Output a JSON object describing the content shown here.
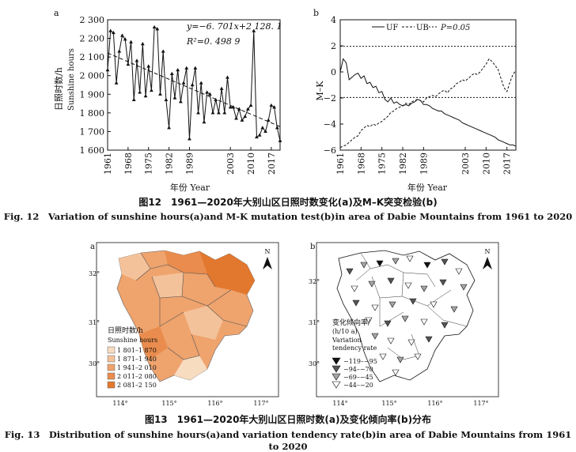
{
  "fig12": {
    "caption_cn": "图12　1961—2020年大别山区日照时数变化(a)及M–K突变检验(b)",
    "caption_en": "Fig. 12　Variation of sunshine hours(a)and M-K mutation test(b)in area of Dabie Mountains from 1961 to 2020"
  },
  "fig13": {
    "caption_cn": "图13　1961—2020年大别山区日照时数(a)及变化倾向率(b)分布",
    "caption_en": "Fig. 13　Distribution of sunshine hours(a)and variation tendency rate(b)in area of Dabie Mountains from 1961 to 2020"
  },
  "chart_data": [
    {
      "type": "line",
      "panel": "a",
      "ylabel_cn": "日照时数/h",
      "ylabel_en": "Sunshine hours",
      "xlabel": "年份 Year",
      "equation": "y=−6. 701x+2 128. 1",
      "r2": "R²=0. 498 9",
      "ylim": [
        1600,
        2300
      ],
      "yticks": [
        "1 600",
        "1 700",
        "1 800",
        "1 900",
        "2 000",
        "2 100",
        "2 200",
        "2 300"
      ],
      "yticks_values": [
        1600,
        1700,
        1800,
        1900,
        2000,
        2100,
        2200,
        2300
      ],
      "xticks": [
        "1961",
        "1968",
        "1975",
        "1982",
        "1989",
        "2003",
        "2010",
        "2017"
      ],
      "x": [
        1961,
        1962,
        1963,
        1964,
        1965,
        1966,
        1967,
        1968,
        1969,
        1970,
        1971,
        1972,
        1973,
        1974,
        1975,
        1976,
        1977,
        1978,
        1979,
        1980,
        1981,
        1982,
        1983,
        1984,
        1985,
        1986,
        1987,
        1988,
        1989,
        1990,
        1991,
        1992,
        1993,
        1994,
        1995,
        1996,
        1997,
        1998,
        1999,
        2000,
        2001,
        2002,
        2003,
        2004,
        2005,
        2006,
        2007,
        2008,
        2009,
        2010,
        2011,
        2012,
        2013,
        2014,
        2015,
        2016,
        2017,
        2018,
        2019,
        2020
      ],
      "values": [
        2030,
        2240,
        2230,
        1960,
        2130,
        2215,
        2195,
        2060,
        2180,
        1870,
        2080,
        1910,
        2170,
        1890,
        2050,
        1920,
        2260,
        2250,
        1900,
        2130,
        1870,
        1720,
        2010,
        1880,
        2030,
        1860,
        1960,
        2040,
        1660,
        1950,
        2040,
        1800,
        1960,
        1750,
        1910,
        1900,
        1800,
        1870,
        1800,
        1930,
        1800,
        1990,
        1830,
        1830,
        1770,
        1820,
        1760,
        1780,
        1820,
        1840,
        2240,
        1670,
        1680,
        1720,
        1700,
        1760,
        1840,
        1830,
        1720,
        1650
      ],
      "trend_x": [
        1961,
        2020
      ],
      "trend_y": [
        2121.4,
        1726.1
      ]
    },
    {
      "type": "line",
      "panel": "b",
      "ylabel": "M–K",
      "xlabel": "年份 Year",
      "ylim": [
        -6,
        4
      ],
      "yticks": [
        "−6",
        "−4",
        "−2",
        "0",
        "2",
        "4"
      ],
      "yticks_values": [
        -6,
        -4,
        -2,
        0,
        2,
        4
      ],
      "xticks": [
        "1961",
        "1968",
        "1975",
        "1982",
        "1989",
        "2003",
        "2010",
        "2017"
      ],
      "legend": [
        "UF",
        "UB",
        "P=0.05"
      ],
      "legend_position": "top",
      "threshold": 1.96,
      "series": [
        {
          "name": "UF",
          "style": "solid",
          "x": [
            1961,
            1962,
            1963,
            1964,
            1965,
            1966,
            1967,
            1968,
            1969,
            1970,
            1971,
            1972,
            1973,
            1974,
            1975,
            1976,
            1977,
            1978,
            1979,
            1980,
            1981,
            1982,
            1983,
            1984,
            1985,
            1986,
            1987,
            1988,
            1989,
            1990,
            1991,
            1992,
            1993,
            1994,
            1995,
            1996,
            1997,
            1998,
            1999,
            2000,
            2001,
            2002,
            2003,
            2004,
            2005,
            2006,
            2007,
            2008,
            2009,
            2010,
            2011,
            2012,
            2013,
            2014,
            2015,
            2016,
            2017,
            2018,
            2019,
            2020
          ],
          "values": [
            0,
            1,
            0.7,
            -0.6,
            -0.4,
            -0.2,
            -0.1,
            -0.5,
            -0.3,
            -0.9,
            -0.8,
            -1.2,
            -1.1,
            -1.6,
            -1.5,
            -2.1,
            -2.3,
            -2.0,
            -2.4,
            -2.3,
            -2.5,
            -2.6,
            -2.5,
            -2.6,
            -2.4,
            -2.3,
            -2.1,
            -2.2,
            -2.5,
            -2.5,
            -2.6,
            -2.8,
            -2.9,
            -3.0,
            -3.0,
            -3.2,
            -3.3,
            -3.4,
            -3.5,
            -3.6,
            -3.7,
            -3.9,
            -4.0,
            -4.1,
            -4.2,
            -4.3,
            -4.4,
            -4.5,
            -4.6,
            -4.7,
            -4.8,
            -4.9,
            -5.0,
            -5.2,
            -5.3,
            -5.4,
            -5.5,
            -5.6,
            -5.6,
            -5.7
          ]
        },
        {
          "name": "UB",
          "style": "dashed",
          "x": [
            1961,
            1962,
            1963,
            1964,
            1965,
            1966,
            1967,
            1968,
            1969,
            1970,
            1971,
            1972,
            1973,
            1974,
            1975,
            1976,
            1977,
            1978,
            1979,
            1980,
            1981,
            1982,
            1983,
            1984,
            1985,
            1986,
            1987,
            1988,
            1989,
            1990,
            1991,
            1992,
            1993,
            1994,
            1995,
            1996,
            1997,
            1998,
            1999,
            2000,
            2001,
            2002,
            2003,
            2004,
            2005,
            2006,
            2007,
            2008,
            2009,
            2010,
            2011,
            2012,
            2013,
            2014,
            2015,
            2016,
            2017,
            2018,
            2019,
            2020
          ],
          "values": [
            -5.8,
            -5.7,
            -5.6,
            -5.4,
            -5.2,
            -5.0,
            -4.9,
            -4.5,
            -4.3,
            -4.1,
            -4.2,
            -4.0,
            -4.1,
            -3.9,
            -3.8,
            -3.6,
            -3.4,
            -3.1,
            -3.0,
            -2.8,
            -2.7,
            -2.6,
            -2.4,
            -2.5,
            -2.3,
            -2.2,
            -2.1,
            -2.2,
            -2.3,
            -2.0,
            -1.9,
            -1.8,
            -1.9,
            -1.7,
            -1.5,
            -1.4,
            -1.6,
            -1.3,
            -1.2,
            -0.9,
            -0.8,
            -0.6,
            -0.7,
            -0.5,
            -0.3,
            -0.1,
            -0.2,
            0,
            0.3,
            0.6,
            1.0,
            0.8,
            0.5,
            0.2,
            -0.5,
            -1.2,
            -1.5,
            -0.8,
            -0.2,
            0.1
          ]
        }
      ]
    }
  ],
  "map_a": {
    "panel": "a",
    "legend_title_cn": "日照时数/h",
    "legend_title_en": "Sunshine hours",
    "legend": [
      {
        "label": "1 801–1 870",
        "color": "#f7dcc0"
      },
      {
        "label": "1 871–1 940",
        "color": "#f4c29a"
      },
      {
        "label": "1 941–2 010",
        "color": "#efa36d"
      },
      {
        "label": "2 011–2 080",
        "color": "#e98c4d"
      },
      {
        "label": "2 081–2 150",
        "color": "#e2782e"
      }
    ],
    "north": "N",
    "lat_labels": [
      "32°",
      "31°",
      "30°"
    ],
    "lon_labels": [
      "114°",
      "115°",
      "116°",
      "117°"
    ]
  },
  "map_b": {
    "panel": "b",
    "legend_title_cn": "变化倾向率/",
    "legend_title_unit": "(h/10 a)",
    "legend_title_en1": "Variation",
    "legend_title_en2": "tendency rate",
    "legend": [
      {
        "label": "−119–−95",
        "fill": "#111111"
      },
      {
        "label": "−94–−70",
        "fill": "#555555"
      },
      {
        "label": "−69–−45",
        "fill": "#a6a6a6"
      },
      {
        "label": "−44–−20",
        "fill": "#ffffff"
      }
    ],
    "north": "N",
    "lat_labels": [
      "32°",
      "31°",
      "30°"
    ],
    "lon_labels": [
      "114°",
      "115°",
      "116°",
      "117°"
    ]
  }
}
